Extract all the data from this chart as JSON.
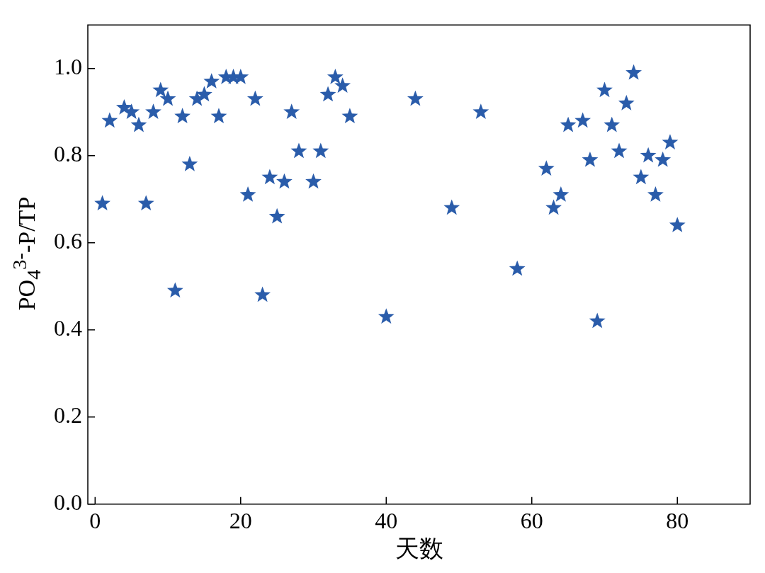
{
  "chart_data": {
    "type": "scatter",
    "xlabel": "天数",
    "ylabel": "PO$_{4}$$^{3-}$-P/TP",
    "marker": "star",
    "grid": false,
    "legend": false,
    "xlim": [
      -1,
      90
    ],
    "xticks": [
      0,
      20,
      40,
      60,
      80
    ],
    "ylim": [
      0,
      1.1
    ],
    "yticks": [
      {
        "value": 0,
        "label": "0.0"
      },
      {
        "value": 0.2,
        "label": "0.2"
      },
      {
        "value": 0.4,
        "label": "0.4"
      },
      {
        "value": 0.6,
        "label": "0.6"
      },
      {
        "value": 0.8,
        "label": "0.8"
      },
      {
        "value": 1,
        "label": "1.0"
      }
    ],
    "series": [
      {
        "color": "#2a5caa",
        "x": [
          1,
          2,
          4,
          5,
          6,
          7,
          8,
          9,
          10,
          11,
          12,
          13,
          14,
          15,
          16,
          17,
          18,
          19,
          20,
          21,
          22,
          23,
          24,
          25,
          26,
          27,
          28,
          30,
          31,
          32,
          33,
          34,
          35,
          40,
          44,
          49,
          53,
          58,
          62,
          63,
          64,
          65,
          67,
          68,
          69,
          70,
          71,
          72,
          73,
          74,
          75,
          76,
          77,
          78,
          79,
          80
        ],
        "values": [
          0.69,
          0.88,
          0.91,
          0.9,
          0.87,
          0.69,
          0.9,
          0.95,
          0.93,
          0.49,
          0.89,
          0.78,
          0.93,
          0.94,
          0.97,
          0.89,
          0.98,
          0.98,
          0.98,
          0.71,
          0.93,
          0.48,
          0.75,
          0.66,
          0.74,
          0.9,
          0.81,
          0.74,
          0.81,
          0.94,
          0.98,
          0.96,
          0.89,
          0.43,
          0.93,
          0.68,
          0.9,
          0.54,
          0.77,
          0.68,
          0.71,
          0.87,
          0.88,
          0.79,
          0.42,
          0.95,
          0.87,
          0.81,
          0.92,
          0.99,
          0.75,
          0.8,
          0.71,
          0.79,
          0.83,
          0.64
        ]
      }
    ]
  }
}
